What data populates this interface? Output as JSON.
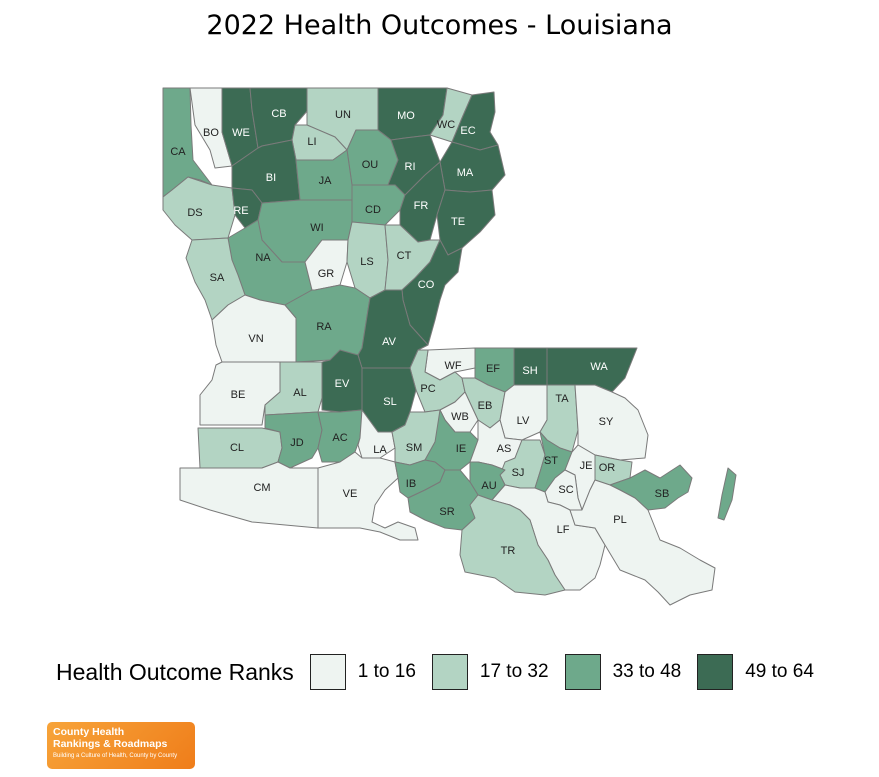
{
  "title": "2022 Health Outcomes - Louisiana",
  "legend": {
    "title": "Health Outcome Ranks",
    "bins": [
      {
        "label": "1 to 16",
        "color": "#eef4f1"
      },
      {
        "label": "17 to 32",
        "color": "#b3d4c3"
      },
      {
        "label": "33 to 48",
        "color": "#6ea98b"
      },
      {
        "label": "49 to 64",
        "color": "#3c6b54"
      }
    ]
  },
  "logo": {
    "line1": "County Health",
    "line2": "Rankings & Roadmaps",
    "line3": "Building a Culture of Health, County by County"
  },
  "parishes": [
    {
      "abbr": "CA",
      "bin": 2
    },
    {
      "abbr": "BO",
      "bin": 0
    },
    {
      "abbr": "WE",
      "bin": 3
    },
    {
      "abbr": "CB",
      "bin": 3
    },
    {
      "abbr": "UN",
      "bin": 1
    },
    {
      "abbr": "MO",
      "bin": 3
    },
    {
      "abbr": "WC",
      "bin": 1
    },
    {
      "abbr": "EC",
      "bin": 3
    },
    {
      "abbr": "LI",
      "bin": 1
    },
    {
      "abbr": "OU",
      "bin": 2
    },
    {
      "abbr": "RI",
      "bin": 3
    },
    {
      "abbr": "MA",
      "bin": 3
    },
    {
      "abbr": "BI",
      "bin": 3
    },
    {
      "abbr": "JA",
      "bin": 2
    },
    {
      "abbr": "DS",
      "bin": 1
    },
    {
      "abbr": "RE",
      "bin": 3
    },
    {
      "abbr": "CD",
      "bin": 2
    },
    {
      "abbr": "FR",
      "bin": 3
    },
    {
      "abbr": "TE",
      "bin": 3
    },
    {
      "abbr": "WI",
      "bin": 2
    },
    {
      "abbr": "NA",
      "bin": 2
    },
    {
      "abbr": "SA",
      "bin": 1
    },
    {
      "abbr": "GR",
      "bin": 0
    },
    {
      "abbr": "LS",
      "bin": 1
    },
    {
      "abbr": "CT",
      "bin": 1
    },
    {
      "abbr": "CO",
      "bin": 3
    },
    {
      "abbr": "VN",
      "bin": 0
    },
    {
      "abbr": "RA",
      "bin": 2
    },
    {
      "abbr": "AV",
      "bin": 3
    },
    {
      "abbr": "WF",
      "bin": 0
    },
    {
      "abbr": "EF",
      "bin": 2
    },
    {
      "abbr": "SH",
      "bin": 3
    },
    {
      "abbr": "WA",
      "bin": 3
    },
    {
      "abbr": "BE",
      "bin": 0
    },
    {
      "abbr": "AL",
      "bin": 1
    },
    {
      "abbr": "EV",
      "bin": 3
    },
    {
      "abbr": "PC",
      "bin": 1
    },
    {
      "abbr": "SL",
      "bin": 3
    },
    {
      "abbr": "EB",
      "bin": 1
    },
    {
      "abbr": "WB",
      "bin": 0
    },
    {
      "abbr": "LV",
      "bin": 0
    },
    {
      "abbr": "TA",
      "bin": 1
    },
    {
      "abbr": "SY",
      "bin": 0
    },
    {
      "abbr": "CL",
      "bin": 1
    },
    {
      "abbr": "JD",
      "bin": 2
    },
    {
      "abbr": "AC",
      "bin": 2
    },
    {
      "abbr": "LA",
      "bin": 0
    },
    {
      "abbr": "SM",
      "bin": 1
    },
    {
      "abbr": "IE",
      "bin": 2
    },
    {
      "abbr": "AS",
      "bin": 0
    },
    {
      "abbr": "SJ",
      "bin": 1
    },
    {
      "abbr": "ST",
      "bin": 2
    },
    {
      "abbr": "JE",
      "bin": 0
    },
    {
      "abbr": "OR",
      "bin": 1
    },
    {
      "abbr": "SB",
      "bin": 2
    },
    {
      "abbr": "CM",
      "bin": 0
    },
    {
      "abbr": "VE",
      "bin": 0
    },
    {
      "abbr": "IB",
      "bin": 2
    },
    {
      "abbr": "AU",
      "bin": 2
    },
    {
      "abbr": "SC",
      "bin": 0
    },
    {
      "abbr": "SR",
      "bin": 2
    },
    {
      "abbr": "LF",
      "bin": 0
    },
    {
      "abbr": "PL",
      "bin": 0
    },
    {
      "abbr": "TR",
      "bin": 1
    }
  ]
}
